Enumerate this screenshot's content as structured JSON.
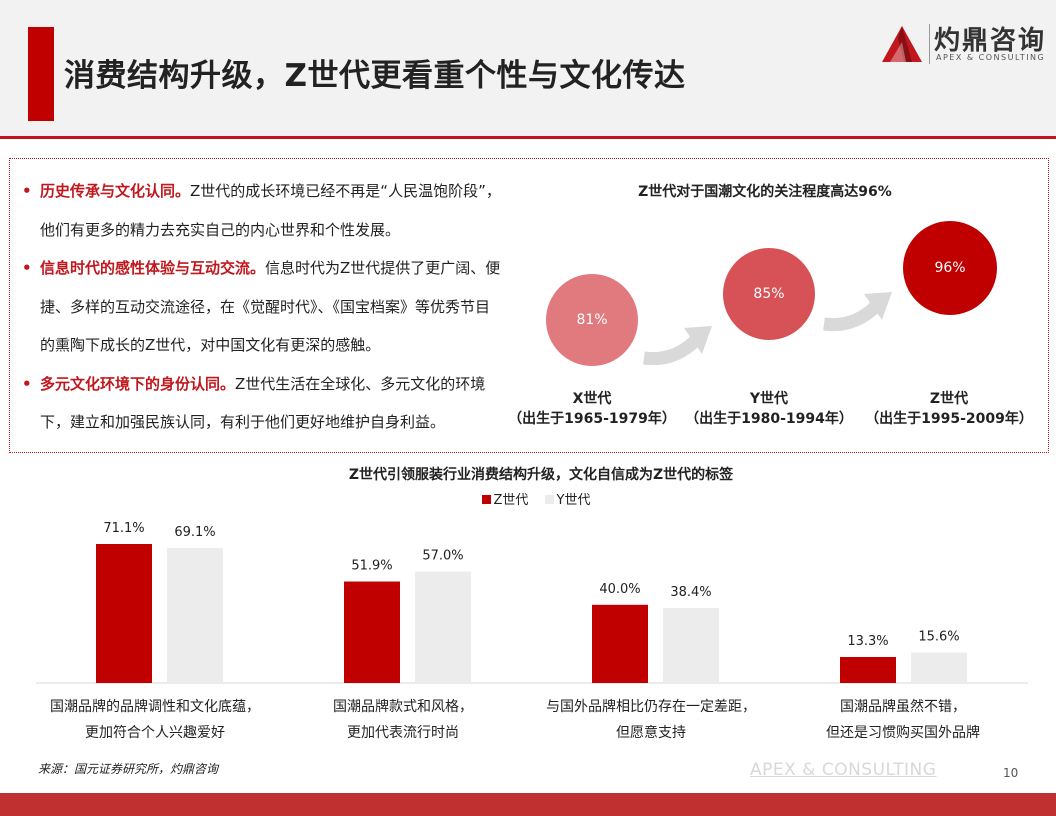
{
  "header": {
    "title": "消费结构升级，Z世代更看重个性与文化传达",
    "logo_cn": "灼鼎咨询",
    "logo_en": "APEX & CONSULTING"
  },
  "bullets": [
    {
      "head": "历史传承与文化认同。",
      "body": "Z世代的成长环境已经不再是“人民温饱阶段”，他们有更多的精力去充实自己的内心世界和个性发展。"
    },
    {
      "head": "信息时代的感性体验与互动交流。",
      "body": "信息时代为Z世代提供了更广阔、便捷、多样的互动交流途径，在《觉醒时代》、《国宝档案》等优秀节目的熏陶下成长的Z世代，对中国文化有更深的感触。"
    },
    {
      "head": "多元文化环境下的身份认同。",
      "body": "Z世代生活在全球化、多元文化的环境下，建立和加强民族认同，有利于他们更好地维护自身利益。"
    }
  ],
  "chart_data": [
    {
      "type": "bubble",
      "title": "Z世代对于国潮文化的关注程度高达96%",
      "categories": [
        "X世代",
        "Y世代",
        "Z世代"
      ],
      "sublabels": [
        "（出生于1965-1979年）",
        "（出生于1980-1994年）",
        "（出生于1995-2009年）"
      ],
      "values": [
        81,
        85,
        96
      ],
      "value_labels": [
        "81%",
        "85%",
        "96%"
      ],
      "colors": [
        "#e07a7e",
        "#d65257",
        "#c00000"
      ]
    },
    {
      "type": "bar",
      "title": "Z世代引领服装行业消费结构升级，文化自信成为Z世代的标签",
      "categories": [
        "国潮品牌的品牌调性和文化底蕴，更加符合个人兴趣爱好",
        "国潮品牌款式和风格，更加代表流行时尚",
        "与国外品牌相比仍存在一定差距，但愿意支持",
        "国潮品牌虽然不错，但还是习惯购买国外品牌"
      ],
      "category_lines": [
        [
          "国潮品牌的品牌调性和文化底蕴，",
          "更加符合个人兴趣爱好"
        ],
        [
          "国潮品牌款式和风格，",
          "更加代表流行时尚"
        ],
        [
          "与国外品牌相比仍存在一定差距，",
          "但愿意支持"
        ],
        [
          "国潮品牌虽然不错，",
          "但还是习惯购买国外品牌"
        ]
      ],
      "series": [
        {
          "name": "Z世代",
          "values": [
            71.1,
            51.9,
            40.0,
            13.3
          ],
          "labels": [
            "71.1%",
            "51.9%",
            "40.0%",
            "13.3%"
          ],
          "color": "#c00000"
        },
        {
          "name": "Y世代",
          "values": [
            69.1,
            57.0,
            38.4,
            15.6
          ],
          "labels": [
            "69.1%",
            "57.0%",
            "38.4%",
            "15.6%"
          ],
          "color": "#ececec"
        }
      ],
      "ylim": [
        0,
        80
      ],
      "legend": "top"
    }
  ],
  "footer": {
    "source": "来源：国元证券研究所，灼鼎咨询",
    "brand": "APEX & CONSULTING",
    "page": "10"
  },
  "colors": {
    "accent": "#c0181e"
  }
}
